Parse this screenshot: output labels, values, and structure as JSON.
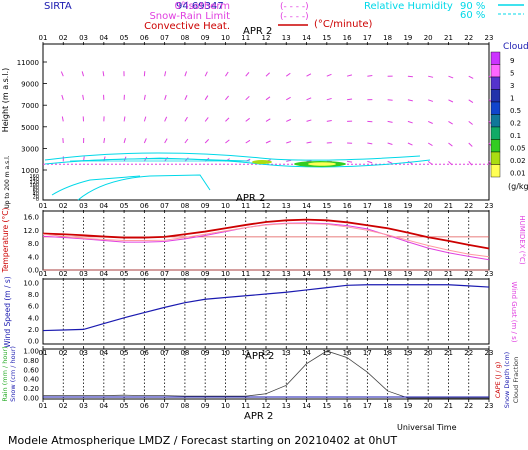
{
  "header": {
    "station": "SIRTA",
    "coords": "94.69347",
    "legend": [
      {
        "label": "0°isotherm",
        "style": "- - -",
        "color": "#e040e0"
      },
      {
        "label": "Snow-Rain Limit",
        "style": "- - -",
        "color": "#e040e0"
      },
      {
        "label": "Convective Heat.",
        "style": "solid",
        "color": "#cc0000",
        "unit": "(°C/minute)"
      }
    ],
    "humidity": {
      "label": "Relative Humidity",
      "v1": "90 %",
      "v2": "60 %",
      "color": "#00d8e8"
    }
  },
  "hours": [
    "01",
    "02",
    "03",
    "04",
    "05",
    "06",
    "07",
    "08",
    "09",
    "10",
    "11",
    "12",
    "13",
    "14",
    "15",
    "16",
    "17",
    "18",
    "19",
    "20",
    "21",
    "22",
    "23"
  ],
  "date_label": "APR  2",
  "colorbar": {
    "title": "Clouds",
    "unit": "(g/kg)",
    "levels": [
      "9",
      "5",
      "3",
      "1",
      "0.5",
      "0.2",
      "0.1",
      "0.05",
      "0.02",
      "0.01"
    ],
    "colors": [
      "#cc33ff",
      "#ff66ff",
      "#5533cc",
      "#2233aa",
      "#1144cc",
      "#117799",
      "#11aa66",
      "#33cc22",
      "#aadd11",
      "#ffff55"
    ]
  },
  "chart_data": [
    {
      "type": "wind-barbs-profile",
      "ylabel": "Height  (m a.s.l.)",
      "ylabel_lower": "Up to 200 m a.s.l.",
      "yticks_upper": [
        "11000",
        "9000",
        "7000",
        "5000",
        "3000",
        "1000"
      ],
      "yticks_lower": [
        "160",
        "140",
        "120",
        "100",
        "80",
        "60",
        "40",
        "20",
        "0"
      ],
      "ylim": [
        0,
        12000
      ],
      "isotherm_height_m": 2000
    },
    {
      "type": "line",
      "ylabel": "Temperature (°C)",
      "ylabel_right": "HUMIDEX (°C)",
      "yticks": [
        "16.0",
        "12.0",
        "8.0",
        "4.0",
        "0.0"
      ],
      "ylim": [
        0,
        16
      ],
      "x": [
        1,
        2,
        3,
        4,
        5,
        6,
        7,
        8,
        9,
        10,
        11,
        12,
        13,
        14,
        15,
        16,
        17,
        18,
        19,
        20,
        21,
        22,
        23
      ],
      "series": [
        {
          "values": [
            11.0,
            10.8,
            10.5,
            10.1,
            9.8,
            9.8,
            10.0,
            10.8,
            11.6,
            12.6,
            13.6,
            14.5,
            15.0,
            15.2,
            15.0,
            14.4,
            13.5,
            12.6,
            11.3,
            9.9,
            8.8,
            7.6,
            6.5
          ]
        },
        {
          "values": [
            10.2,
            9.8,
            9.4,
            8.9,
            8.4,
            8.4,
            8.6,
            9.4,
            10.4,
            11.6,
            12.8,
            13.7,
            14.1,
            14.2,
            14.0,
            13.4,
            12.4,
            10.5,
            8.5,
            6.6,
            5.2,
            4.1,
            3.1
          ]
        },
        {
          "values": [
            10.8,
            10.2,
            9.6,
            9.2,
            8.9,
            8.9,
            9.0,
            9.8,
            10.8,
            11.8,
            12.8,
            13.6,
            14.0,
            14.0,
            13.8,
            13.0,
            12.0,
            10.6,
            9.0,
            7.4,
            6.0,
            4.8,
            4.0
          ]
        }
      ],
      "reference_line_y": 10
    },
    {
      "type": "line",
      "ylabel": "Wind Speed (m / s)",
      "ylabel_right": "Wind Gust (m / s)",
      "yticks": [
        "10.0",
        "8.0",
        "6.0",
        "4.0",
        "2.0",
        "0.0"
      ],
      "ylim": [
        0,
        10
      ],
      "x": [
        1,
        2,
        3,
        4,
        5,
        6,
        7,
        8,
        9,
        10,
        11,
        12,
        13,
        14,
        15,
        16,
        17,
        18,
        19,
        20,
        21,
        22,
        23
      ],
      "series": [
        {
          "values": [
            1.8,
            1.9,
            2.0,
            3.0,
            4.0,
            4.9,
            5.8,
            6.6,
            7.2,
            7.5,
            7.8,
            8.1,
            8.4,
            8.8,
            9.2,
            9.6,
            9.7,
            9.7,
            9.7,
            9.7,
            9.7,
            9.5,
            9.3
          ]
        }
      ]
    },
    {
      "type": "line",
      "ylabel": "Rain (mm / hour)",
      "ylabel_mid": "Snow (cm / hour)",
      "ylabel_right": [
        "CAPE (J / g)",
        "Snow Depth (cm)",
        "Cloud Fraction"
      ],
      "yticks": [
        "1.00",
        "0.80",
        "0.60",
        "0.40",
        "0.20",
        "0.00"
      ],
      "ylim": [
        0,
        1
      ],
      "x": [
        1,
        2,
        3,
        4,
        5,
        6,
        7,
        8,
        9,
        10,
        11,
        12,
        13,
        14,
        15,
        16,
        17,
        18,
        19,
        20,
        21,
        22,
        23
      ],
      "series": [
        {
          "values": [
            0.05,
            0.05,
            0.05,
            0.05,
            0.06,
            0.05,
            0.05,
            0.04,
            0.04,
            0.04,
            0.04,
            0.09,
            0.27,
            0.73,
            1.0,
            0.86,
            0.55,
            0.15,
            0.0,
            0.0,
            0.0,
            0.0,
            0.0
          ]
        }
      ],
      "xlabel": "Universal Time"
    }
  ],
  "footer": "Modele Atmospherique LMDZ / Forecast starting on 20210402 at 0hUT"
}
